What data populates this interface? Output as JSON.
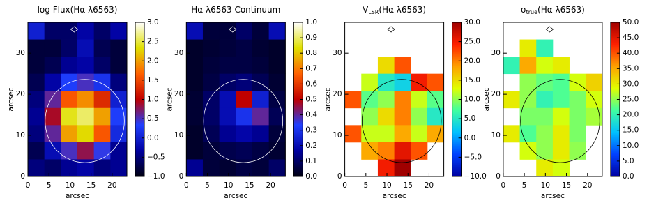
{
  "chart_data": [
    {
      "type": "image",
      "title_parts": [
        "log Flux(Hα λ6563)"
      ],
      "xlabel": "arcsec",
      "ylabel": "arcsec",
      "xlim": [
        0,
        23.5
      ],
      "ylim": [
        0,
        37.5
      ],
      "xticks": [
        0,
        5,
        10,
        15,
        20
      ],
      "yticks": [
        0,
        10,
        20,
        30
      ],
      "clim": [
        -1,
        3
      ],
      "cticks": [
        {
          "value": -1,
          "label": "−1.0"
        },
        {
          "value": -0.5,
          "label": "−0.5"
        },
        {
          "value": 0,
          "label": "0.0"
        },
        {
          "value": 0.5,
          "label": "0.5"
        },
        {
          "value": 1,
          "label": "1.0"
        },
        {
          "value": 1.5,
          "label": "1.5"
        },
        {
          "value": 2,
          "label": "2.0"
        },
        {
          "value": 2.5,
          "label": "2.5"
        },
        {
          "value": 3,
          "label": "3.0"
        }
      ],
      "colormap": [
        "#000010",
        "#0000a0",
        "#2040ff",
        "#c00000",
        "#ff6000",
        "#e0e000",
        "#ffffff"
      ],
      "contour_color": "#ffffff",
      "z": [
        [
          0.0,
          -0.6,
          -0.6,
          -0.3,
          -0.6,
          -0.3
        ],
        [
          -0.8,
          -0.8,
          -0.6,
          -0.2,
          -0.7,
          -0.8
        ],
        [
          -0.8,
          -0.7,
          -0.4,
          -0.3,
          -0.6,
          -0.8
        ],
        [
          -0.7,
          -0.3,
          0.3,
          0.5,
          0.2,
          -0.5
        ],
        [
          -0.5,
          0.6,
          1.6,
          1.9,
          1.3,
          0.0
        ],
        [
          -0.4,
          0.9,
          2.4,
          2.6,
          2.0,
          0.3
        ],
        [
          -0.5,
          0.6,
          2.0,
          2.3,
          1.6,
          0.1
        ],
        [
          -0.7,
          -0.2,
          0.5,
          0.8,
          0.4,
          -0.4
        ],
        [
          -0.5,
          -0.6,
          -0.4,
          -0.3,
          -0.5,
          -0.4
        ]
      ]
    },
    {
      "type": "image",
      "title_parts": [
        "Hα λ6563 Continuum"
      ],
      "xlabel": "arcsec",
      "ylabel": "arcsec",
      "xlim": [
        0,
        23.5
      ],
      "ylim": [
        0,
        37.5
      ],
      "xticks": [
        0,
        5,
        10,
        15,
        20
      ],
      "yticks": [
        0,
        10,
        20,
        30
      ],
      "clim": [
        0,
        1
      ],
      "cticks": [
        {
          "value": 0,
          "label": "0.0"
        },
        {
          "value": 0.1,
          "label": "0.1"
        },
        {
          "value": 0.2,
          "label": "0.2"
        },
        {
          "value": 0.3,
          "label": "0.3"
        },
        {
          "value": 0.4,
          "label": "0.4"
        },
        {
          "value": 0.5,
          "label": "0.5"
        },
        {
          "value": 0.6,
          "label": "0.6"
        },
        {
          "value": 0.7,
          "label": "0.7"
        },
        {
          "value": 0.8,
          "label": "0.8"
        },
        {
          "value": 0.9,
          "label": "0.9"
        },
        {
          "value": 1,
          "label": "1.0"
        }
      ],
      "colormap": [
        "#000010",
        "#0000a0",
        "#2040ff",
        "#c00000",
        "#ff6000",
        "#e0e000",
        "#ffffff"
      ],
      "contour_color": "#ffffff",
      "z": [
        [
          0.2,
          0.05,
          0.05,
          0.1,
          0.05,
          0.2
        ],
        [
          0.03,
          0.04,
          0.05,
          0.06,
          0.04,
          0.03
        ],
        [
          0.03,
          0.05,
          0.06,
          0.06,
          0.05,
          0.03
        ],
        [
          0.03,
          0.06,
          0.1,
          0.12,
          0.08,
          0.04
        ],
        [
          0.04,
          0.1,
          0.2,
          0.5,
          0.25,
          0.06
        ],
        [
          0.04,
          0.1,
          0.2,
          0.3,
          0.4,
          0.08
        ],
        [
          0.03,
          0.08,
          0.15,
          0.18,
          0.15,
          0.05
        ],
        [
          0.03,
          0.05,
          0.07,
          0.08,
          0.06,
          0.04
        ],
        [
          0.15,
          0.05,
          0.04,
          0.06,
          0.05,
          0.1
        ]
      ]
    },
    {
      "type": "image",
      "title_parts": [
        "V",
        "LSR",
        "(Hα λ6563)"
      ],
      "xlabel": "arcsec",
      "ylabel": "arcsec",
      "xlim": [
        0,
        23.5
      ],
      "ylim": [
        0,
        37.5
      ],
      "xticks": [
        0,
        5,
        10,
        15,
        20
      ],
      "yticks": [
        0,
        10,
        20,
        30
      ],
      "clim": [
        -10,
        30
      ],
      "cticks": [
        {
          "value": -10,
          "label": "−10.0"
        },
        {
          "value": -5,
          "label": "−5.0"
        },
        {
          "value": 0,
          "label": "0.0"
        },
        {
          "value": 5,
          "label": "5.0"
        },
        {
          "value": 10,
          "label": "10.0"
        },
        {
          "value": 15,
          "label": "15.0"
        },
        {
          "value": 20,
          "label": "20.0"
        },
        {
          "value": 25,
          "label": "25.0"
        },
        {
          "value": 30,
          "label": "30.0"
        }
      ],
      "colormap": [
        "#0000a0",
        "#0040ff",
        "#00c0ff",
        "#40ffa0",
        "#e0ff00",
        "#ffa000",
        "#ff2000",
        "#a00000"
      ],
      "contour_color": "#000000",
      "z": [
        [
          null,
          null,
          null,
          null,
          null,
          null
        ],
        [
          null,
          null,
          null,
          null,
          null,
          null
        ],
        [
          null,
          null,
          15,
          22,
          null,
          null
        ],
        [
          null,
          12,
          5,
          3,
          25,
          22
        ],
        [
          22,
          8,
          10,
          20,
          12,
          8
        ],
        [
          null,
          10,
          15,
          20,
          10,
          5
        ],
        [
          22,
          12,
          12,
          18,
          12,
          18
        ],
        [
          null,
          18,
          20,
          26,
          22,
          null
        ],
        [
          null,
          null,
          25,
          30,
          null,
          null
        ]
      ]
    },
    {
      "type": "image",
      "title_parts": [
        "σ",
        "true",
        "(Hα λ6563)"
      ],
      "xlabel": "arcsec",
      "ylabel": "arcsec",
      "xlim": [
        0,
        23.5
      ],
      "ylim": [
        0,
        37.5
      ],
      "xticks": [
        0,
        5,
        10,
        15,
        20
      ],
      "yticks": [
        0,
        10,
        20,
        30
      ],
      "clim": [
        0,
        50
      ],
      "cticks": [
        {
          "value": 0,
          "label": "0.0"
        },
        {
          "value": 5,
          "label": "5.0"
        },
        {
          "value": 10,
          "label": "10.0"
        },
        {
          "value": 15,
          "label": "15.0"
        },
        {
          "value": 20,
          "label": "20.0"
        },
        {
          "value": 25,
          "label": "25.0"
        },
        {
          "value": 30,
          "label": "30.0"
        },
        {
          "value": 35,
          "label": "35.0"
        },
        {
          "value": 40,
          "label": "40.0"
        },
        {
          "value": 45,
          "label": "45.0"
        },
        {
          "value": 50,
          "label": "50.0"
        }
      ],
      "colormap": [
        "#0000a0",
        "#0040ff",
        "#00c0ff",
        "#40ffa0",
        "#e0ff00",
        "#ffa000",
        "#ff2000",
        "#a00000"
      ],
      "contour_color": "#000000",
      "z": [
        [
          null,
          null,
          null,
          null,
          null,
          null
        ],
        [
          null,
          30,
          20,
          null,
          null,
          null
        ],
        [
          20,
          35,
          28,
          30,
          null,
          null
        ],
        [
          null,
          25,
          23,
          22,
          28,
          32
        ],
        [
          30,
          25,
          20,
          22,
          24,
          28
        ],
        [
          null,
          24,
          24,
          28,
          24,
          26
        ],
        [
          30,
          22,
          25,
          30,
          24,
          null
        ],
        [
          null,
          28,
          25,
          30,
          25,
          null
        ],
        [
          null,
          null,
          30,
          28,
          null,
          null
        ]
      ]
    }
  ]
}
